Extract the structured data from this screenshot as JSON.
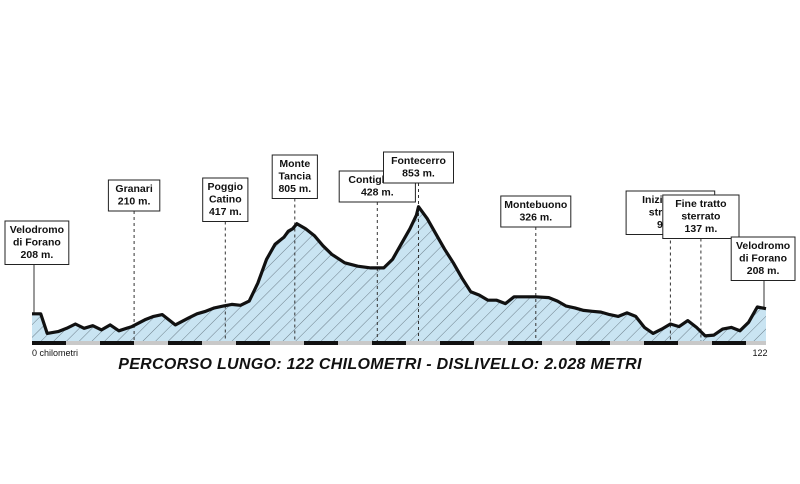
{
  "diagram": {
    "caption": "PERCORSO LUNGO: 122 CHILOMETRI - DISLIVELLO: 2.028 METRI",
    "axis_start_label": "0 chilometri",
    "axis_end_label": "122",
    "distance_km": 122,
    "fill_color": "#c9e4f2",
    "line_color": "#111111",
    "profile": [
      [
        0,
        1.6
      ],
      [
        2,
        1.6
      ],
      [
        3.5,
        0.45
      ],
      [
        6,
        0.55
      ],
      [
        8,
        0.75
      ],
      [
        10,
        1.0
      ],
      [
        12,
        0.75
      ],
      [
        14,
        0.9
      ],
      [
        16,
        0.65
      ],
      [
        18,
        0.95
      ],
      [
        20,
        0.6
      ],
      [
        23,
        0.85
      ],
      [
        26,
        1.25
      ],
      [
        28,
        1.45
      ],
      [
        30,
        1.55
      ],
      [
        33,
        0.95
      ],
      [
        36,
        1.35
      ],
      [
        38,
        1.6
      ],
      [
        40,
        1.75
      ],
      [
        42,
        1.95
      ],
      [
        44,
        2.05
      ],
      [
        46,
        2.15
      ],
      [
        48,
        2.1
      ],
      [
        50,
        2.35
      ],
      [
        52,
        3.4
      ],
      [
        54,
        4.8
      ],
      [
        56,
        5.7
      ],
      [
        58,
        6.1
      ],
      [
        59,
        6.45
      ],
      [
        60,
        6.6
      ],
      [
        61,
        6.9
      ],
      [
        63,
        6.6
      ],
      [
        65,
        6.2
      ],
      [
        67,
        5.6
      ],
      [
        69,
        5.1
      ],
      [
        72,
        4.6
      ],
      [
        75,
        4.4
      ],
      [
        78,
        4.3
      ],
      [
        81,
        4.3
      ],
      [
        83,
        4.8
      ],
      [
        85,
        5.7
      ],
      [
        87,
        6.6
      ],
      [
        88.5,
        7.4
      ],
      [
        89,
        7.9
      ],
      [
        91,
        7.2
      ],
      [
        93,
        6.3
      ],
      [
        95,
        5.4
      ],
      [
        97,
        4.6
      ],
      [
        99,
        3.7
      ],
      [
        101,
        2.9
      ],
      [
        103,
        2.7
      ],
      [
        105,
        2.4
      ],
      [
        107,
        2.4
      ],
      [
        109,
        2.2
      ],
      [
        111,
        2.6
      ],
      [
        113,
        2.6
      ],
      [
        116,
        2.6
      ],
      [
        119,
        2.55
      ],
      [
        121,
        2.35
      ],
      [
        123,
        2.05
      ],
      [
        125,
        1.95
      ],
      [
        127,
        1.8
      ],
      [
        129,
        1.75
      ],
      [
        131,
        1.7
      ],
      [
        133,
        1.55
      ],
      [
        135,
        1.45
      ],
      [
        137,
        1.65
      ],
      [
        139,
        1.45
      ],
      [
        141,
        0.8
      ],
      [
        143,
        0.45
      ],
      [
        145,
        0.7
      ],
      [
        147,
        1.0
      ],
      [
        149,
        0.85
      ],
      [
        151,
        1.2
      ],
      [
        153,
        0.8
      ],
      [
        155,
        0.3
      ],
      [
        157,
        0.35
      ],
      [
        159,
        0.7
      ],
      [
        161,
        0.8
      ],
      [
        163,
        0.6
      ],
      [
        165,
        1.1
      ],
      [
        167,
        2.0
      ],
      [
        169,
        1.9
      ]
    ],
    "markers": [
      {
        "lines": [
          "Velodromo",
          "di Forano",
          "208 m."
        ],
        "side": "left",
        "pos": 0,
        "elevation_m": 208
      },
      {
        "lines": [
          "Granari",
          "210 m."
        ],
        "pos": 23.5,
        "elevation_m": 210
      },
      {
        "lines": [
          "Poggio",
          "Catino",
          "417 m."
        ],
        "pos": 44.5,
        "elevation_m": 417
      },
      {
        "lines": [
          "Monte",
          "Tancia",
          "805 m."
        ],
        "pos": 60.5,
        "elevation_m": 805
      },
      {
        "lines": [
          "Contigliano",
          "428 m."
        ],
        "pos": 79.5,
        "elevation_m": 428
      },
      {
        "lines": [
          "Fontecerro",
          "853 m."
        ],
        "pos": 89,
        "elevation_m": 853
      },
      {
        "lines": [
          "Montebuono",
          "326 m."
        ],
        "pos": 116,
        "elevation_m": 326
      },
      {
        "lines": [
          "Inizio tratto",
          "strerrato",
          "93 m."
        ],
        "pos": 147,
        "elevation_m": 93
      },
      {
        "lines": [
          "Fine tratto",
          "sterrato",
          "137 m."
        ],
        "pos": 154,
        "elevation_m": 137
      },
      {
        "lines": [
          "Velodromo",
          "di Forano",
          "208 m."
        ],
        "side": "right",
        "pos": 169,
        "elevation_m": 208
      }
    ]
  }
}
